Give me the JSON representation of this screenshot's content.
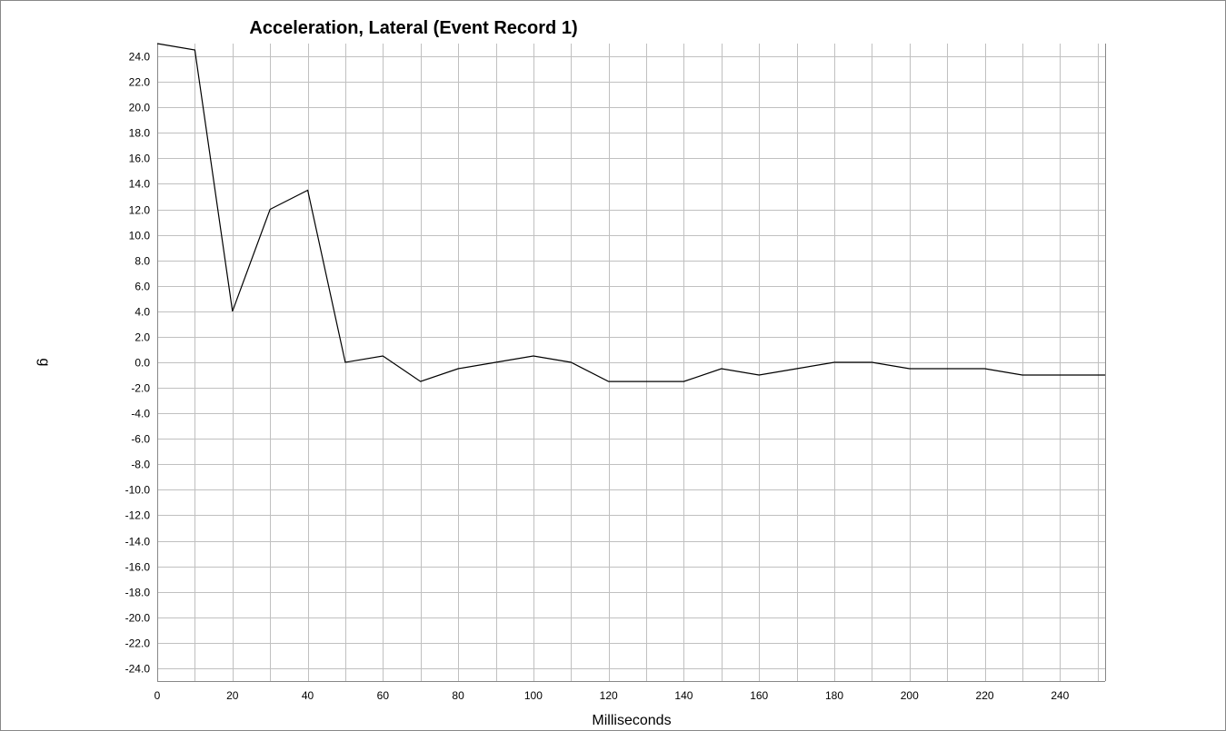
{
  "chart_data": {
    "type": "line",
    "title": "Acceleration, Lateral (Event Record 1)",
    "xlabel": "Milliseconds",
    "ylabel": "g",
    "xlim": [
      0,
      252
    ],
    "ylim": [
      -25,
      25
    ],
    "x_ticks": [
      0,
      20,
      40,
      60,
      80,
      100,
      120,
      140,
      160,
      180,
      200,
      220,
      240
    ],
    "x_minor_step": 10,
    "y_ticks": [
      "-24.0",
      "-22.0",
      "-20.0",
      "-18.0",
      "-16.0",
      "-14.0",
      "-12.0",
      "-10.0",
      "-8.0",
      "-6.0",
      "-4.0",
      "-2.0",
      "0.0",
      "2.0",
      "4.0",
      "6.0",
      "8.0",
      "10.0",
      "12.0",
      "14.0",
      "16.0",
      "18.0",
      "20.0",
      "22.0",
      "24.0"
    ],
    "grid": true,
    "line_color": "#000000",
    "series": [
      {
        "x": [
          0,
          10,
          20,
          30,
          40,
          50,
          60,
          70,
          80,
          90,
          100,
          110,
          120,
          130,
          140,
          150,
          160,
          170,
          180,
          190,
          200,
          210,
          220,
          230,
          240,
          252
        ],
        "y": [
          25.0,
          24.5,
          4.0,
          12.0,
          13.5,
          0.0,
          0.5,
          -1.5,
          -0.5,
          0.0,
          0.5,
          0.0,
          -1.5,
          -1.5,
          -1.5,
          -0.5,
          -1.0,
          -0.5,
          0.0,
          0.0,
          -0.5,
          -0.5,
          -0.5,
          -1.0,
          -1.0,
          -1.0
        ]
      }
    ]
  }
}
